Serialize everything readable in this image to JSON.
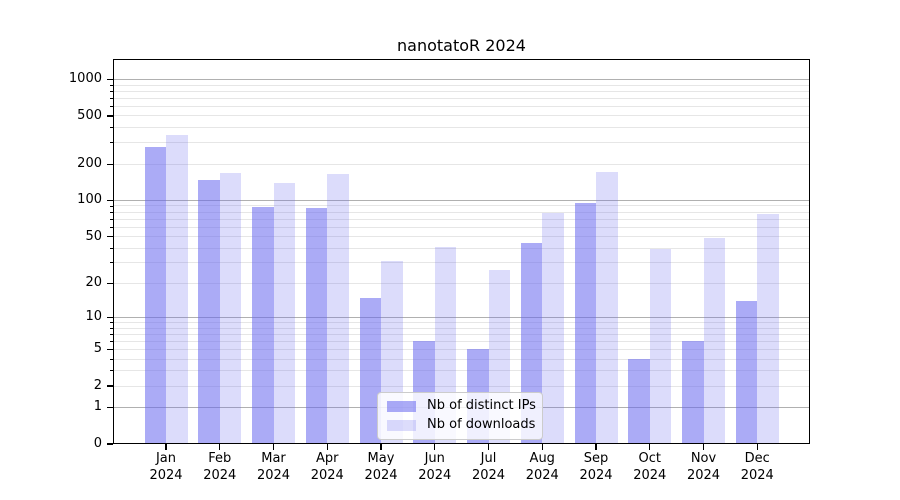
{
  "chart_data": {
    "type": "bar",
    "title": "nanotatoR 2024",
    "categories": [
      "Jan",
      "Feb",
      "Mar",
      "Apr",
      "May",
      "Jun",
      "Jul",
      "Aug",
      "Sep",
      "Oct",
      "Nov",
      "Dec"
    ],
    "category_sublabel": "2024",
    "series": [
      {
        "name": "Nb of distinct IPs",
        "color": "rgba(102,102,238,0.55)",
        "values": [
          279,
          148,
          89,
          86,
          15,
          6,
          5,
          44,
          95,
          4,
          6,
          14
        ]
      },
      {
        "name": "Nb of downloads",
        "color": "rgba(102,102,238,0.23)",
        "values": [
          350,
          168,
          140,
          167,
          31,
          41,
          26,
          79,
          171,
          39,
          49,
          77
        ]
      }
    ],
    "xlabel": "",
    "ylabel": "",
    "y_scale": "log1p",
    "y_ticks": [
      0,
      1,
      2,
      5,
      10,
      20,
      50,
      100,
      200,
      500,
      1000
    ],
    "major_grid_values": [
      1,
      10,
      100,
      1000
    ],
    "ylim": [
      0,
      1470
    ],
    "grid": true,
    "legend_position": "lower center",
    "colors": {
      "major_grid": "#b0b0b0",
      "minor_grid": "#e6e6e6",
      "axis": "#000000",
      "text": "#000000",
      "background": "#ffffff"
    }
  }
}
